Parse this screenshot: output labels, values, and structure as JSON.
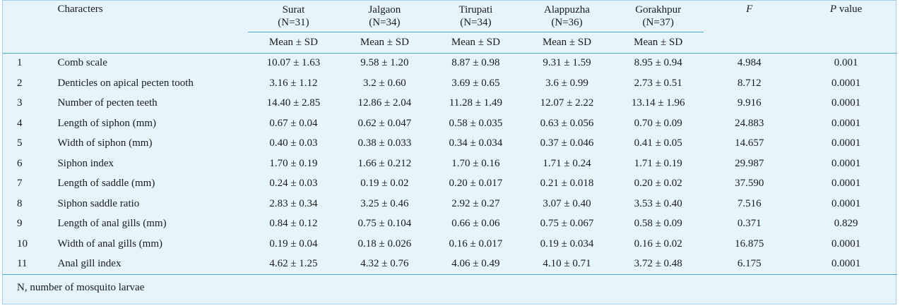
{
  "header": {
    "characters": "Characters",
    "locations": [
      {
        "name": "Surat",
        "n": "(N=31)"
      },
      {
        "name": "Jalgaon",
        "n": "(N=34)"
      },
      {
        "name": "Tirupati",
        "n": "(N=34)"
      },
      {
        "name": "Alappuzha",
        "n": "(N=36)"
      },
      {
        "name": "Gorakhpur",
        "n": "(N=37)"
      }
    ],
    "f": "F",
    "p_prefix": "P",
    "p_suffix": " value",
    "mean_sd": "Mean ± SD"
  },
  "rows": [
    {
      "idx": "1",
      "name": "Comb scale",
      "vals": [
        "10.07 ± 1.63",
        "9.58 ± 1.20",
        "8.87 ± 0.98",
        "9.31 ± 1.59",
        "8.95 ± 0.94"
      ],
      "f": "4.984",
      "p": "0.001"
    },
    {
      "idx": "2",
      "name": "Denticles on apical pecten tooth",
      "vals": [
        "3.16 ± 1.12",
        "3.2 ± 0.60",
        "3.69 ± 0.65",
        "3.6 ± 0.99",
        "2.73 ± 0.51"
      ],
      "f": "8.712",
      "p": "0.0001"
    },
    {
      "idx": "3",
      "name": "Number of pecten teeth",
      "vals": [
        "14.40 ± 2.85",
        "12.86 ± 2.04",
        "11.28 ± 1.49",
        "12.07 ± 2.22",
        "13.14 ± 1.96"
      ],
      "f": "9.916",
      "p": "0.0001"
    },
    {
      "idx": "4",
      "name": "Length of siphon (mm)",
      "vals": [
        "0.67 ± 0.04",
        "0.62 ± 0.047",
        "0.58 ± 0.035",
        "0.63 ± 0.056",
        "0.70 ± 0.09"
      ],
      "f": "24.883",
      "p": "0.0001"
    },
    {
      "idx": "5",
      "name": "Width of siphon (mm)",
      "vals": [
        "0.40 ± 0.03",
        "0.38 ± 0.033",
        "0.34 ± 0.034",
        "0.37 ± 0.046",
        "0.41 ± 0.05"
      ],
      "f": "14.657",
      "p": "0.0001"
    },
    {
      "idx": "6",
      "name": "Siphon index",
      "vals": [
        "1.70 ± 0.19",
        "1.66 ± 0.212",
        "1.70 ± 0.16",
        "1.71 ± 0.24",
        "1.71 ± 0.19"
      ],
      "f": "29.987",
      "p": "0.0001"
    },
    {
      "idx": "7",
      "name": "Length of saddle (mm)",
      "vals": [
        "0.24 ± 0.03",
        "0.19 ± 0.02",
        "0.20 ± 0.017",
        "0.21 ± 0.018",
        "0.20 ± 0.02"
      ],
      "f": "37.590",
      "p": "0.0001"
    },
    {
      "idx": "8",
      "name": "Siphon saddle ratio",
      "vals": [
        "2.83 ± 0.34",
        "3.25 ± 0.46",
        "2.92 ± 0.27",
        "3.07 ± 0.40",
        "3.53 ± 0.40"
      ],
      "f": "7.516",
      "p": "0.0001"
    },
    {
      "idx": "9",
      "name": "Length of anal gills (mm)",
      "vals": [
        "0.84 ± 0.12",
        "0.75 ± 0.104",
        "0.66 ± 0.06",
        "0.75 ± 0.067",
        "0.58 ± 0.09"
      ],
      "f": "0.371",
      "p": "0.829"
    },
    {
      "idx": "10",
      "name": "Width of anal gills (mm)",
      "vals": [
        "0.19 ± 0.04",
        "0.18 ± 0.026",
        "0.16 ± 0.017",
        "0.19 ± 0.034",
        "0.16 ± 0.02"
      ],
      "f": "16.875",
      "p": "0.0001"
    },
    {
      "idx": "11",
      "name": "Anal gill index",
      "vals": [
        "4.62 ± 1.25",
        "4.32 ± 0.76",
        "4.06 ± 0.49",
        "4.10 ± 0.71",
        "3.72 ± 0.48"
      ],
      "f": "6.175",
      "p": "0.0001"
    }
  ],
  "footnote": "N, number of mosquito larvae",
  "colors": {
    "background": "#e6f5fb",
    "rule": "#4aa8cf",
    "border": "#9fd2e8"
  }
}
